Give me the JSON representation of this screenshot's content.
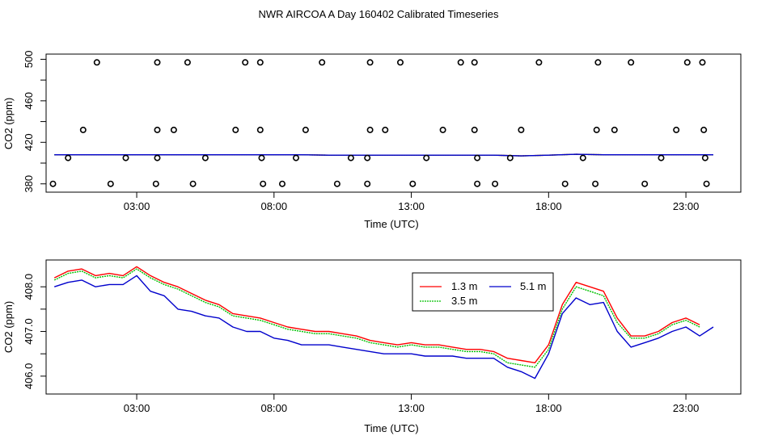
{
  "chart_data": [
    {
      "type": "scatter",
      "title": "NWR AIRCOA A  Day 160402  Calibrated Timeseries",
      "xlabel": "Time (UTC)",
      "ylabel": "CO2 (ppm)",
      "xlim": [
        -0.3,
        25.0
      ],
      "ylim": [
        372,
        505
      ],
      "xticks": [
        3,
        8,
        13,
        18,
        23
      ],
      "xtick_labels": [
        "03:00",
        "08:00",
        "13:00",
        "18:00",
        "23:00"
      ],
      "yticks": [
        380,
        420,
        460,
        500
      ],
      "ytick_minor": [
        400,
        440,
        480
      ],
      "ytick_labels": [
        "380",
        "420",
        "460",
        "500"
      ],
      "colors": {
        "1.3 m": "#ff0000",
        "3.5 m": "#00c000",
        "5.1 m": "#0000cc",
        "points": "#000000"
      },
      "points": [
        {
          "x": 1.55,
          "y": 497
        },
        {
          "x": 3.75,
          "y": 497
        },
        {
          "x": 4.85,
          "y": 497
        },
        {
          "x": 6.95,
          "y": 497
        },
        {
          "x": 7.5,
          "y": 497
        },
        {
          "x": 9.75,
          "y": 497
        },
        {
          "x": 11.5,
          "y": 497
        },
        {
          "x": 12.6,
          "y": 497
        },
        {
          "x": 14.8,
          "y": 497
        },
        {
          "x": 15.3,
          "y": 497
        },
        {
          "x": 17.65,
          "y": 497
        },
        {
          "x": 19.8,
          "y": 497
        },
        {
          "x": 21.0,
          "y": 497
        },
        {
          "x": 23.05,
          "y": 497
        },
        {
          "x": 23.6,
          "y": 497
        },
        {
          "x": 1.05,
          "y": 432
        },
        {
          "x": 3.75,
          "y": 432
        },
        {
          "x": 4.35,
          "y": 432
        },
        {
          "x": 6.6,
          "y": 432
        },
        {
          "x": 7.5,
          "y": 432
        },
        {
          "x": 9.15,
          "y": 432
        },
        {
          "x": 11.5,
          "y": 432
        },
        {
          "x": 12.05,
          "y": 432
        },
        {
          "x": 14.15,
          "y": 432
        },
        {
          "x": 15.3,
          "y": 432
        },
        {
          "x": 17.0,
          "y": 432
        },
        {
          "x": 19.75,
          "y": 432
        },
        {
          "x": 20.4,
          "y": 432
        },
        {
          "x": 22.65,
          "y": 432
        },
        {
          "x": 23.65,
          "y": 432
        },
        {
          "x": 0.5,
          "y": 405
        },
        {
          "x": 2.6,
          "y": 405
        },
        {
          "x": 3.75,
          "y": 405
        },
        {
          "x": 5.5,
          "y": 405
        },
        {
          "x": 7.55,
          "y": 405
        },
        {
          "x": 8.8,
          "y": 405
        },
        {
          "x": 10.8,
          "y": 405
        },
        {
          "x": 11.4,
          "y": 405
        },
        {
          "x": 13.55,
          "y": 405
        },
        {
          "x": 15.4,
          "y": 405
        },
        {
          "x": 16.6,
          "y": 405
        },
        {
          "x": 19.25,
          "y": 405
        },
        {
          "x": 22.1,
          "y": 405
        },
        {
          "x": 23.7,
          "y": 405
        },
        {
          "x": -0.05,
          "y": 380
        },
        {
          "x": 2.05,
          "y": 380
        },
        {
          "x": 3.7,
          "y": 380
        },
        {
          "x": 5.05,
          "y": 380
        },
        {
          "x": 7.6,
          "y": 380
        },
        {
          "x": 8.3,
          "y": 380
        },
        {
          "x": 10.3,
          "y": 380
        },
        {
          "x": 11.4,
          "y": 380
        },
        {
          "x": 13.05,
          "y": 380
        },
        {
          "x": 15.4,
          "y": 380
        },
        {
          "x": 16.05,
          "y": 380
        },
        {
          "x": 18.6,
          "y": 380
        },
        {
          "x": 19.7,
          "y": 380
        },
        {
          "x": 21.5,
          "y": 380
        },
        {
          "x": 23.75,
          "y": 380
        }
      ],
      "series": [
        {
          "name": "1.3 m",
          "x": [
            0,
            1,
            2,
            3,
            4,
            5,
            6,
            7,
            8,
            9,
            10,
            11,
            12,
            13,
            14,
            15,
            16,
            17,
            18,
            19,
            20,
            21,
            22,
            23,
            24
          ],
          "y": [
            408,
            408,
            408,
            408,
            408,
            408,
            408,
            408,
            408,
            408,
            407.6,
            407.6,
            407.6,
            407.6,
            407.6,
            407.6,
            407.6,
            406.9,
            407.6,
            408.5,
            408,
            408,
            408,
            408,
            408
          ]
        },
        {
          "name": "3.5 m",
          "x": [
            0,
            1,
            2,
            3,
            4,
            5,
            6,
            7,
            8,
            9,
            10,
            11,
            12,
            13,
            14,
            15,
            16,
            17,
            18,
            19,
            20,
            21,
            22,
            23,
            24
          ],
          "y": [
            408,
            408,
            408,
            408,
            408,
            408,
            408,
            408,
            408,
            408,
            407.6,
            407.6,
            407.6,
            407.6,
            407.6,
            407.6,
            407.6,
            406.9,
            407.6,
            408.5,
            408,
            408,
            408,
            408,
            408
          ]
        },
        {
          "name": "5.1 m",
          "x": [
            0,
            1,
            2,
            3,
            4,
            5,
            6,
            7,
            8,
            9,
            10,
            11,
            12,
            13,
            14,
            15,
            16,
            17,
            18,
            19,
            20,
            21,
            22,
            23,
            24
          ],
          "y": [
            408,
            408,
            408,
            408,
            408,
            408,
            408,
            408,
            408,
            408,
            407.6,
            407.6,
            407.6,
            407.6,
            407.6,
            407.6,
            407.6,
            406.9,
            407.6,
            408.5,
            408,
            408,
            408,
            408,
            408
          ]
        }
      ]
    },
    {
      "type": "line",
      "title": "",
      "xlabel": "Time (UTC)",
      "ylabel": "CO2 (ppm)",
      "xlim": [
        -0.3,
        25.0
      ],
      "ylim": [
        405.6,
        408.6
      ],
      "xticks": [
        3,
        8,
        13,
        18,
        23
      ],
      "xtick_labels": [
        "03:00",
        "08:00",
        "13:00",
        "18:00",
        "23:00"
      ],
      "yticks": [
        406.0,
        407.0,
        408.0
      ],
      "ytick_minor": [
        406.5,
        407.5
      ],
      "ytick_labels": [
        "406.0",
        "407.0",
        "408.0"
      ],
      "legend": [
        "1.3 m",
        "5.1 m",
        "3.5 m"
      ],
      "legend_position": "top-right",
      "colors": {
        "1.3 m": "#ff0000",
        "3.5 m": "#00c000",
        "5.1 m": "#0000cc"
      },
      "series": [
        {
          "name": "1.3 m",
          "x": [
            0,
            0.5,
            1,
            1.5,
            2,
            2.5,
            3,
            3.5,
            4,
            4.5,
            5,
            5.5,
            6,
            6.5,
            7,
            7.5,
            8,
            8.5,
            9,
            9.5,
            10,
            10.5,
            11,
            11.5,
            12,
            12.5,
            13,
            13.5,
            14,
            14.5,
            15,
            15.5,
            16,
            16.5,
            17,
            17.5,
            18,
            18.5,
            19,
            19.5,
            20,
            20.5,
            21,
            21.5,
            22,
            22.5,
            23,
            23.5
          ],
          "y": [
            408.2,
            408.35,
            408.4,
            408.25,
            408.3,
            408.25,
            408.45,
            408.25,
            408.1,
            408.0,
            407.85,
            407.7,
            407.6,
            407.4,
            407.35,
            407.3,
            407.2,
            407.1,
            407.05,
            407.0,
            407.0,
            406.95,
            406.9,
            406.8,
            406.75,
            406.7,
            406.75,
            406.7,
            406.7,
            406.65,
            406.6,
            406.6,
            406.55,
            406.4,
            406.35,
            406.3,
            406.7,
            407.6,
            408.1,
            408.0,
            407.9,
            407.3,
            406.9,
            406.9,
            407.0,
            407.2,
            407.3,
            407.15
          ]
        },
        {
          "name": "3.5 m",
          "x": [
            0,
            0.5,
            1,
            1.5,
            2,
            2.5,
            3,
            3.5,
            4,
            4.5,
            5,
            5.5,
            6,
            6.5,
            7,
            7.5,
            8,
            8.5,
            9,
            9.5,
            10,
            10.5,
            11,
            11.5,
            12,
            12.5,
            13,
            13.5,
            14,
            14.5,
            15,
            15.5,
            16,
            16.5,
            17,
            17.5,
            18,
            18.5,
            19,
            19.5,
            20,
            20.5,
            21,
            21.5,
            22,
            22.5,
            23,
            23.5
          ],
          "y": [
            408.15,
            408.3,
            408.35,
            408.2,
            408.25,
            408.2,
            408.4,
            408.2,
            408.05,
            407.95,
            407.8,
            407.65,
            407.55,
            407.35,
            407.3,
            407.25,
            407.15,
            407.05,
            407.0,
            406.95,
            406.95,
            406.9,
            406.85,
            406.75,
            406.7,
            406.65,
            406.7,
            406.65,
            406.65,
            406.6,
            406.55,
            406.55,
            406.5,
            406.3,
            406.25,
            406.2,
            406.6,
            407.5,
            408.0,
            407.9,
            407.8,
            407.2,
            406.85,
            406.85,
            406.95,
            407.15,
            407.25,
            407.1
          ]
        },
        {
          "name": "5.1 m",
          "x": [
            0,
            0.5,
            1,
            1.5,
            2,
            2.5,
            3,
            3.5,
            4,
            4.5,
            5,
            5.5,
            6,
            6.5,
            7,
            7.5,
            8,
            8.5,
            9,
            9.5,
            10,
            10.5,
            11,
            11.5,
            12,
            12.5,
            13,
            13.5,
            14,
            14.5,
            15,
            15.5,
            16,
            16.5,
            17,
            17.5,
            18,
            18.5,
            19,
            19.5,
            20,
            20.5,
            21,
            21.5,
            22,
            22.5,
            23,
            23.5,
            24
          ],
          "y": [
            408.0,
            408.1,
            408.15,
            408.0,
            408.05,
            408.05,
            408.25,
            407.9,
            407.8,
            407.5,
            407.45,
            407.35,
            407.3,
            407.1,
            407.0,
            407.0,
            406.85,
            406.8,
            406.7,
            406.7,
            406.7,
            406.65,
            406.6,
            406.55,
            406.5,
            406.5,
            406.5,
            406.45,
            406.45,
            406.45,
            406.4,
            406.4,
            406.4,
            406.2,
            406.1,
            405.95,
            406.5,
            407.4,
            407.75,
            407.6,
            407.65,
            407.0,
            406.65,
            406.75,
            406.85,
            407.0,
            407.1,
            406.9,
            407.1
          ]
        }
      ]
    }
  ]
}
